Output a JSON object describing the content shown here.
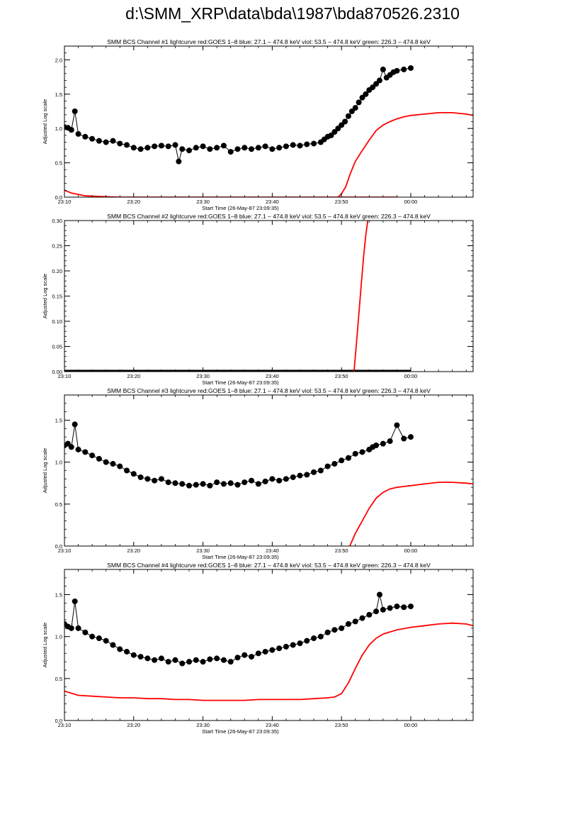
{
  "page": {
    "title": "d:\\SMM_XRP\\data\\bda\\1987\\bda870526.2310"
  },
  "colors": {
    "goes": "#ff0000",
    "bcs": "#000000",
    "axis": "#000000"
  },
  "chart_data": [
    {
      "type": "line",
      "title": "SMM BCS Channel #1 lightcurve  red:GOES 1–8  blue: 27.1 – 474.8 keV  viol: 53.5 – 474.8 keV  green: 226.3 – 474.8 keV",
      "xlabel": "Start Time (26-May-87 23:09:35)",
      "ylabel": "Adjusted Log scale",
      "xlim": [
        0,
        59
      ],
      "ylim": [
        0,
        2.2
      ],
      "xticks": [
        0,
        10,
        20,
        30,
        40,
        50
      ],
      "xtick_labels": [
        "23:10",
        "23:20",
        "23:30",
        "23:40",
        "23:50",
        "00:00"
      ],
      "yticks": [
        0,
        0.5,
        1.0,
        1.5,
        2.0
      ],
      "ytick_labels": [
        "0.0",
        "0.5",
        "1.0",
        "1.5",
        "2.0"
      ],
      "series": [
        {
          "color": "#ff0000",
          "style": "line",
          "x": [
            0,
            1,
            2,
            3,
            5,
            8,
            12,
            18,
            24,
            30,
            36,
            42,
            47,
            48,
            39.5,
            40,
            40.6,
            41.3,
            42,
            43,
            44,
            45,
            46,
            47,
            48,
            49,
            50,
            52,
            54,
            56,
            57,
            58,
            59
          ],
          "y": [
            0.1,
            0.06,
            0.04,
            0.02,
            0.01,
            0.0,
            0.0,
            0.0,
            0.0,
            0.0,
            0.0,
            0.0,
            0.0,
            0.0,
            0.0,
            0.05,
            0.15,
            0.35,
            0.52,
            0.68,
            0.83,
            0.97,
            1.05,
            1.1,
            1.14,
            1.17,
            1.19,
            1.21,
            1.23,
            1.23,
            1.22,
            1.21,
            1.19
          ]
        },
        {
          "color": "#000000",
          "style": "markers",
          "x": [
            0,
            0.5,
            1,
            1.5,
            2,
            3,
            4,
            5,
            6,
            7,
            8,
            9,
            10,
            11,
            12,
            13,
            14,
            15,
            16,
            16.5,
            17,
            18,
            19,
            20,
            21,
            22,
            23,
            24,
            25,
            26,
            27,
            28,
            29,
            30,
            31,
            32,
            33,
            34,
            35,
            36,
            37,
            37.5,
            38,
            38.5,
            39,
            39.5,
            40,
            40.5,
            41,
            41.5,
            42,
            42.5,
            43,
            43.5,
            44,
            44.5,
            45,
            45.5,
            46,
            46.5,
            47,
            47.5,
            48,
            49,
            50
          ],
          "y": [
            1.02,
            1.01,
            0.98,
            1.25,
            0.92,
            0.88,
            0.85,
            0.82,
            0.8,
            0.82,
            0.78,
            0.76,
            0.72,
            0.7,
            0.72,
            0.74,
            0.75,
            0.74,
            0.76,
            0.52,
            0.7,
            0.68,
            0.72,
            0.74,
            0.7,
            0.72,
            0.75,
            0.66,
            0.7,
            0.72,
            0.7,
            0.72,
            0.74,
            0.7,
            0.72,
            0.74,
            0.76,
            0.75,
            0.77,
            0.78,
            0.8,
            0.84,
            0.88,
            0.9,
            0.95,
            1.0,
            1.05,
            1.1,
            1.18,
            1.25,
            1.3,
            1.38,
            1.45,
            1.5,
            1.56,
            1.6,
            1.65,
            1.7,
            1.86,
            1.74,
            1.78,
            1.82,
            1.84,
            1.86,
            1.88
          ]
        }
      ]
    },
    {
      "type": "line",
      "title": "SMM BCS Channel #2 lightcurve  red:GOES 1–8  blue: 27.1 – 474.8 keV  viol: 53.5 – 474.8 keV  green: 226.3 – 474.8 keV",
      "xlabel": "Start Time (26-May-87 23:09:35)",
      "ylabel": "Adjusted Log scale",
      "xlim": [
        0,
        59
      ],
      "ylim": [
        0,
        0.3
      ],
      "xticks": [
        0,
        10,
        20,
        30,
        40,
        50
      ],
      "xtick_labels": [
        "23:10",
        "23:20",
        "23:30",
        "23:40",
        "23:50",
        "00:00"
      ],
      "yticks": [
        0,
        0.05,
        0.1,
        0.15,
        0.2,
        0.25,
        0.3
      ],
      "ytick_labels": [
        "0.00",
        "0.05",
        "0.10",
        "0.15",
        "0.20",
        "0.25",
        "0.30"
      ],
      "series": [
        {
          "color": "#000000",
          "style": "thickline",
          "x": [
            0,
            50
          ],
          "y": [
            0.0,
            0.0
          ]
        },
        {
          "color": "#ff0000",
          "style": "line",
          "x": [
            41.8,
            42,
            42.3,
            42.6,
            42.9,
            43.2,
            43.5,
            43.8
          ],
          "y": [
            0.0,
            0.03,
            0.08,
            0.13,
            0.18,
            0.23,
            0.27,
            0.3
          ]
        }
      ]
    },
    {
      "type": "line",
      "title": "SMM BCS Channel #3 lightcurve  red:GOES 1–8  blue: 27.1 – 474.8 keV  viol: 53.5 – 474.8 keV  green: 226.3 – 474.8 keV",
      "xlabel": "Start Time (26-May-87 23:09:35)",
      "ylabel": "Adjusted Log scale",
      "xlim": [
        0,
        59
      ],
      "ylim": [
        0,
        1.8
      ],
      "xticks": [
        0,
        10,
        20,
        30,
        40,
        50
      ],
      "xtick_labels": [
        "23:10",
        "23:20",
        "23:30",
        "23:40",
        "23:50",
        "00:00"
      ],
      "yticks": [
        0,
        0.5,
        1.0,
        1.5
      ],
      "ytick_labels": [
        "0.0",
        "0.5",
        "1.0",
        "1.5"
      ],
      "series": [
        {
          "color": "#ff0000",
          "style": "line",
          "x": [
            41.2,
            42,
            43,
            44,
            45,
            46,
            47,
            48,
            49,
            50,
            52,
            54,
            56,
            58,
            59
          ],
          "y": [
            0.0,
            0.15,
            0.3,
            0.45,
            0.57,
            0.64,
            0.68,
            0.7,
            0.71,
            0.72,
            0.74,
            0.76,
            0.76,
            0.75,
            0.74
          ]
        },
        {
          "color": "#000000",
          "style": "markers",
          "x": [
            0,
            0.5,
            1,
            1.5,
            2,
            3,
            4,
            5,
            6,
            7,
            8,
            9,
            10,
            11,
            12,
            13,
            14,
            15,
            16,
            17,
            18,
            19,
            20,
            21,
            22,
            23,
            24,
            25,
            26,
            27,
            28,
            29,
            30,
            31,
            32,
            33,
            34,
            35,
            36,
            37,
            38,
            39,
            40,
            41,
            42,
            43,
            44,
            44.5,
            45,
            46,
            47,
            48,
            49,
            50
          ],
          "y": [
            1.2,
            1.22,
            1.18,
            1.45,
            1.15,
            1.12,
            1.08,
            1.04,
            1.0,
            0.98,
            0.95,
            0.9,
            0.86,
            0.82,
            0.8,
            0.78,
            0.8,
            0.76,
            0.75,
            0.74,
            0.72,
            0.73,
            0.74,
            0.72,
            0.76,
            0.74,
            0.75,
            0.73,
            0.76,
            0.78,
            0.74,
            0.77,
            0.8,
            0.78,
            0.8,
            0.82,
            0.84,
            0.85,
            0.88,
            0.9,
            0.95,
            0.98,
            1.02,
            1.05,
            1.1,
            1.12,
            1.15,
            1.18,
            1.2,
            1.22,
            1.25,
            1.44,
            1.28,
            1.3
          ]
        }
      ]
    },
    {
      "type": "line",
      "title": "SMM BCS Channel #4 lightcurve  red:GOES 1–8  blue: 27.1 – 474.8 keV  viol: 53.5 – 474.8 keV  green: 226.3 – 474.8 keV",
      "xlabel": "Start Time (26-May-87 23:09:35)",
      "ylabel": "Adjusted Log scale",
      "xlim": [
        0,
        59
      ],
      "ylim": [
        0,
        1.8
      ],
      "xticks": [
        0,
        10,
        20,
        30,
        40,
        50
      ],
      "xtick_labels": [
        "23:10",
        "23:20",
        "23:30",
        "23:40",
        "23:50",
        "00:00"
      ],
      "yticks": [
        0,
        0.5,
        1.0,
        1.5
      ],
      "ytick_labels": [
        "0.0",
        "0.5",
        "1.0",
        "1.5"
      ],
      "series": [
        {
          "color": "#ff0000",
          "style": "line",
          "x": [
            0,
            2,
            4,
            6,
            8,
            10,
            12,
            14,
            16,
            18,
            20,
            22,
            24,
            26,
            28,
            30,
            32,
            34,
            36,
            38,
            39,
            40,
            41,
            42,
            43,
            44,
            45,
            46,
            48,
            50,
            52,
            54,
            56,
            58,
            59
          ],
          "y": [
            0.35,
            0.3,
            0.29,
            0.28,
            0.27,
            0.27,
            0.26,
            0.26,
            0.25,
            0.25,
            0.24,
            0.24,
            0.24,
            0.24,
            0.25,
            0.25,
            0.25,
            0.25,
            0.26,
            0.27,
            0.28,
            0.32,
            0.45,
            0.62,
            0.78,
            0.9,
            0.98,
            1.03,
            1.08,
            1.11,
            1.13,
            1.15,
            1.16,
            1.15,
            1.13
          ]
        },
        {
          "color": "#000000",
          "style": "markers",
          "x": [
            0,
            0.5,
            1,
            1.5,
            2,
            3,
            4,
            5,
            6,
            7,
            8,
            9,
            10,
            11,
            12,
            13,
            14,
            15,
            16,
            17,
            18,
            19,
            20,
            21,
            22,
            23,
            24,
            25,
            26,
            27,
            28,
            29,
            30,
            31,
            32,
            33,
            34,
            35,
            36,
            37,
            38,
            39,
            40,
            41,
            42,
            43,
            44,
            45,
            45.5,
            46,
            47,
            48,
            49,
            50
          ],
          "y": [
            1.15,
            1.12,
            1.1,
            1.42,
            1.1,
            1.05,
            1.0,
            0.98,
            0.95,
            0.9,
            0.85,
            0.82,
            0.78,
            0.76,
            0.74,
            0.72,
            0.74,
            0.7,
            0.72,
            0.68,
            0.7,
            0.72,
            0.7,
            0.73,
            0.74,
            0.72,
            0.7,
            0.75,
            0.78,
            0.76,
            0.8,
            0.82,
            0.84,
            0.86,
            0.88,
            0.9,
            0.92,
            0.95,
            0.98,
            1.0,
            1.05,
            1.08,
            1.1,
            1.15,
            1.18,
            1.22,
            1.26,
            1.3,
            1.5,
            1.32,
            1.34,
            1.36,
            1.35,
            1.36
          ]
        }
      ]
    }
  ]
}
